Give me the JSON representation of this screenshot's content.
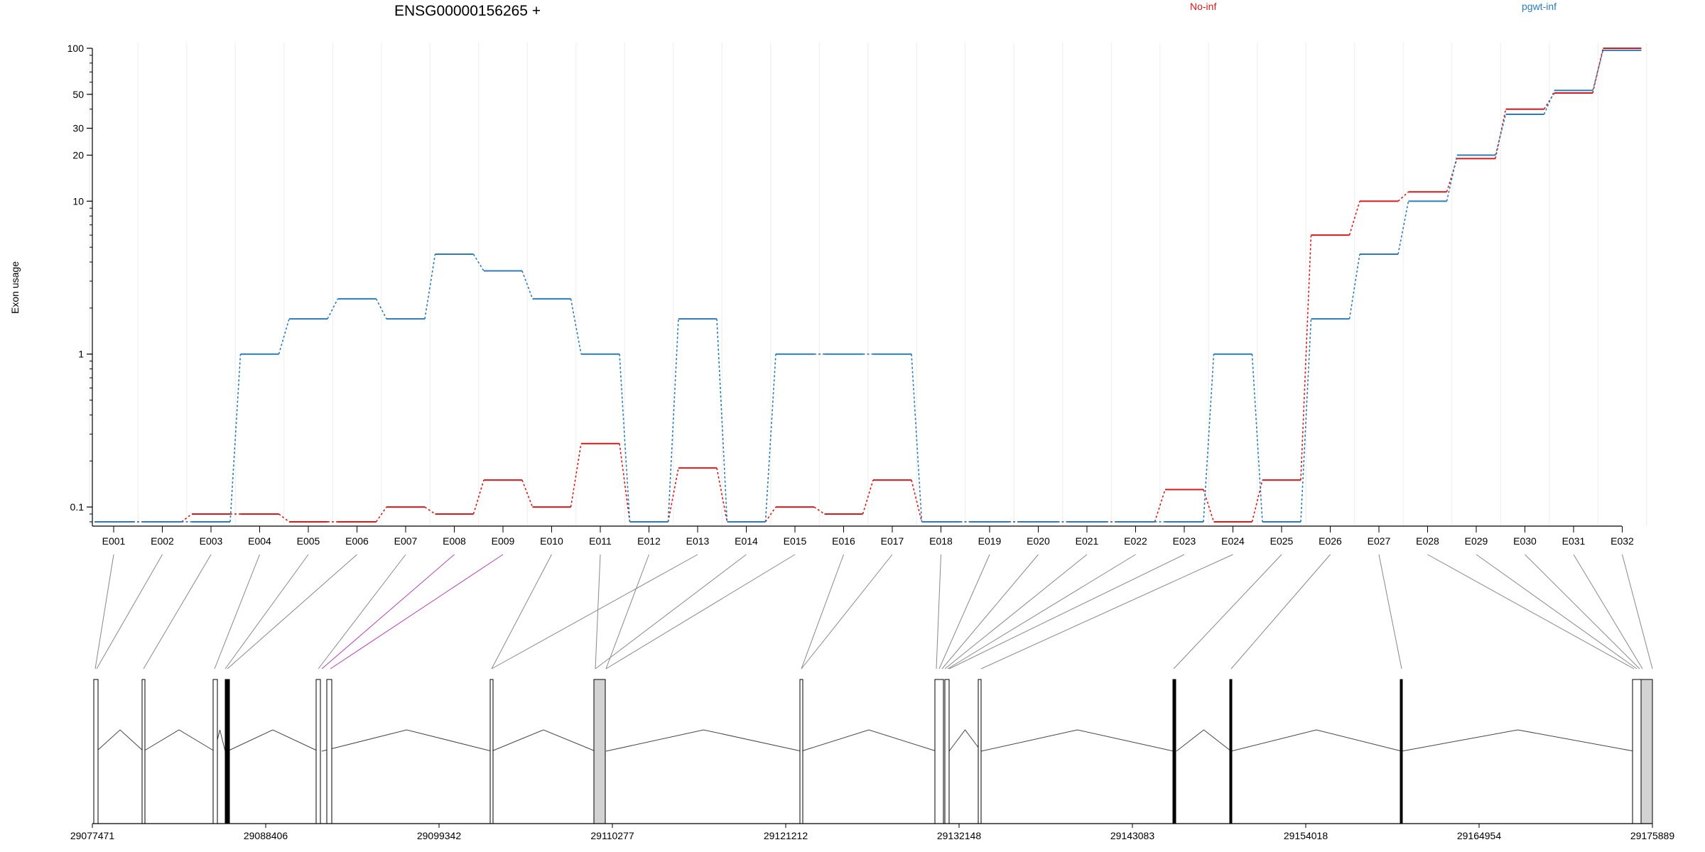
{
  "chart_data": {
    "type": "line",
    "title": "ENSG00000156265 +",
    "ylabel": "Exon usage",
    "xlabel": "",
    "y_scale": "log",
    "ylim": [
      0.075,
      100
    ],
    "y_ticks": [
      0.1,
      1,
      10,
      20,
      30,
      50,
      100
    ],
    "y_tick_labels": [
      "0.1",
      "1",
      "10",
      "20",
      "30",
      "50",
      "100"
    ],
    "grid": true,
    "legend_placement": "top",
    "categories": [
      "E001",
      "E002",
      "E003",
      "E004",
      "E005",
      "E006",
      "E007",
      "E008",
      "E009",
      "E010",
      "E011",
      "E012",
      "E013",
      "E014",
      "E015",
      "E016",
      "E017",
      "E018",
      "E019",
      "E020",
      "E021",
      "E022",
      "E023",
      "E024",
      "E025",
      "E026",
      "E027",
      "E028",
      "E029",
      "E030",
      "E031",
      "E032"
    ],
    "series": [
      {
        "name": "No-inf",
        "color": "#d7191c",
        "values": [
          0.08,
          0.08,
          0.09,
          0.09,
          0.08,
          0.08,
          0.1,
          0.09,
          0.15,
          0.1,
          0.26,
          0.08,
          0.18,
          0.08,
          0.1,
          0.09,
          0.15,
          0.08,
          0.08,
          0.08,
          0.08,
          0.08,
          0.13,
          0.08,
          0.15,
          6.0,
          10.0,
          11.5,
          19,
          40,
          51,
          100
        ]
      },
      {
        "name": "pgwt-inf",
        "color": "#2c7bb6",
        "values": [
          0.08,
          0.08,
          0.08,
          1.0,
          1.7,
          2.3,
          1.7,
          4.5,
          3.5,
          2.3,
          1.0,
          0.08,
          1.7,
          0.08,
          1.0,
          1.0,
          1.0,
          0.08,
          0.08,
          0.08,
          0.08,
          0.08,
          0.08,
          1.0,
          0.08,
          1.7,
          4.5,
          10,
          20,
          37,
          53,
          97
        ]
      }
    ],
    "gene_model": {
      "coord_labels": [
        "29077471",
        "29088406",
        "29099342",
        "29110277",
        "29121212",
        "29132148",
        "29143083",
        "29154018",
        "29164954",
        "29175889"
      ],
      "highlighted_exon": "E009",
      "highlight_color": "#b23fb3",
      "exon_fill": "#d3d3d3"
    }
  }
}
